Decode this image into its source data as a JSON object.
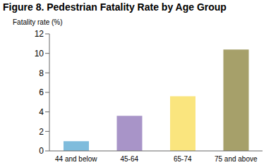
{
  "chart_data": {
    "type": "bar",
    "title": "Figure 8.  Pedestrian Fatality Rate by Age Group",
    "y_label": "Fatality rate (%)",
    "categories": [
      "44 and below",
      "45-64",
      "65-74",
      "75 and above"
    ],
    "values": [
      1.0,
      3.6,
      5.6,
      10.4
    ],
    "colors": [
      "#7fbcdc",
      "#a894c8",
      "#fae57e",
      "#a6a06a"
    ],
    "ylim": [
      0,
      12
    ],
    "yticks": [
      0,
      2,
      4,
      6,
      8,
      10,
      12
    ],
    "grid": false
  }
}
